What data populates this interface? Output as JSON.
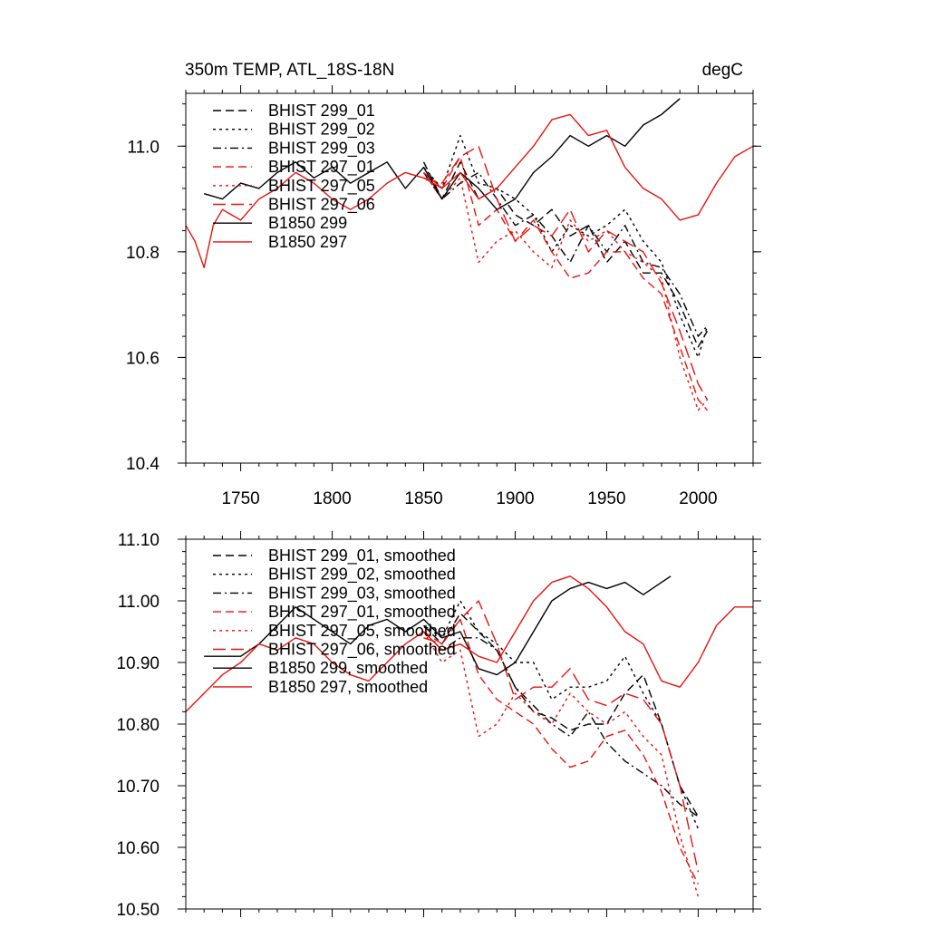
{
  "colors": {
    "black": "#000000",
    "red": "#e8120f"
  },
  "chart_data": [
    {
      "type": "line",
      "title_left": "350m TEMP, ATL_18S-18N",
      "title_right": "degC",
      "xlim": [
        1720,
        2030
      ],
      "ylim": [
        10.4,
        11.1
      ],
      "xticks": [
        1750,
        1800,
        1850,
        1900,
        1950,
        2000
      ],
      "xtick_labels": [
        "1750",
        "1800",
        "1850",
        "1900",
        "1950",
        "2000"
      ],
      "yticks": [
        10.4,
        10.6,
        10.8,
        11.0
      ],
      "ytick_labels": [
        "10.4",
        "10.6",
        "10.8",
        "11.0"
      ],
      "series": [
        {
          "name": "BHIST 299_01",
          "color": "black",
          "dash": "dash",
          "x": [
            1850,
            1860,
            1870,
            1880,
            1890,
            1900,
            1910,
            1920,
            1930,
            1940,
            1950,
            1960,
            1970,
            1980,
            1990,
            2000,
            2005
          ],
          "y": [
            10.97,
            10.9,
            10.97,
            10.9,
            10.92,
            10.87,
            10.85,
            10.88,
            10.83,
            10.85,
            10.78,
            10.82,
            10.76,
            10.76,
            10.7,
            10.62,
            10.65
          ]
        },
        {
          "name": "BHIST 299_02",
          "color": "black",
          "dash": "dot",
          "x": [
            1850,
            1860,
            1870,
            1880,
            1890,
            1900,
            1910,
            1920,
            1930,
            1940,
            1950,
            1960,
            1970,
            1980,
            1990,
            2000,
            2005
          ],
          "y": [
            10.96,
            10.92,
            11.02,
            10.93,
            10.92,
            10.9,
            10.87,
            10.8,
            10.85,
            10.83,
            10.85,
            10.88,
            10.82,
            10.78,
            10.68,
            10.6,
            10.66
          ]
        },
        {
          "name": "BHIST 299_03",
          "color": "black",
          "dash": "dashdot",
          "x": [
            1850,
            1860,
            1870,
            1880,
            1890,
            1900,
            1910,
            1920,
            1930,
            1940,
            1950,
            1960,
            1970,
            1980,
            1990,
            2000,
            2005
          ],
          "y": [
            10.95,
            10.9,
            10.93,
            10.95,
            10.9,
            10.85,
            10.87,
            10.83,
            10.78,
            10.85,
            10.8,
            10.85,
            10.78,
            10.77,
            10.72,
            10.64,
            10.66
          ]
        },
        {
          "name": "BHIST 297_01",
          "color": "red",
          "dash": "dash",
          "x": [
            1850,
            1860,
            1870,
            1880,
            1890,
            1900,
            1910,
            1920,
            1930,
            1940,
            1950,
            1960,
            1970,
            1980,
            1990,
            2000,
            2005
          ],
          "y": [
            10.95,
            10.92,
            10.98,
            10.85,
            10.88,
            10.82,
            10.86,
            10.8,
            10.75,
            10.76,
            10.8,
            10.8,
            10.75,
            10.72,
            10.62,
            10.52,
            10.5
          ]
        },
        {
          "name": "BHIST 297_05",
          "color": "red",
          "dash": "dot",
          "x": [
            1850,
            1860,
            1870,
            1880,
            1890,
            1900,
            1910,
            1920,
            1930,
            1940,
            1950,
            1960,
            1970,
            1980,
            1990,
            2000,
            2005
          ],
          "y": [
            10.95,
            10.9,
            10.94,
            10.78,
            10.82,
            10.84,
            10.8,
            10.77,
            10.86,
            10.82,
            10.84,
            10.8,
            10.78,
            10.75,
            10.6,
            10.5,
            10.52
          ]
        },
        {
          "name": "BHIST 297_06",
          "color": "red",
          "dash": "longdash",
          "x": [
            1850,
            1860,
            1870,
            1880,
            1890,
            1900,
            1910,
            1920,
            1930,
            1940,
            1950,
            1960,
            1970,
            1980,
            1990,
            2000,
            2005
          ],
          "y": [
            10.94,
            10.93,
            10.98,
            11.0,
            10.9,
            10.82,
            10.85,
            10.83,
            10.88,
            10.8,
            10.84,
            10.82,
            10.8,
            10.74,
            10.65,
            10.55,
            10.52
          ]
        },
        {
          "name": "B1850 299",
          "color": "black",
          "dash": "solid",
          "x": [
            1730,
            1740,
            1750,
            1760,
            1770,
            1780,
            1790,
            1800,
            1810,
            1820,
            1830,
            1840,
            1850,
            1860,
            1870,
            1880,
            1890,
            1900,
            1910,
            1920,
            1930,
            1940,
            1950,
            1960,
            1970,
            1980,
            1990
          ],
          "y": [
            10.91,
            10.9,
            10.93,
            10.92,
            10.95,
            10.97,
            10.94,
            10.96,
            10.93,
            10.95,
            10.97,
            10.92,
            10.96,
            10.9,
            10.95,
            10.92,
            10.88,
            10.9,
            10.95,
            10.98,
            11.02,
            11.0,
            11.02,
            11.0,
            11.04,
            11.06,
            11.09
          ]
        },
        {
          "name": "B1850 297",
          "color": "red",
          "dash": "solid",
          "x": [
            1720,
            1725,
            1730,
            1735,
            1740,
            1750,
            1760,
            1770,
            1780,
            1790,
            1800,
            1810,
            1820,
            1830,
            1840,
            1850,
            1860,
            1870,
            1880,
            1890,
            1900,
            1910,
            1920,
            1930,
            1940,
            1950,
            1960,
            1970,
            1980,
            1990,
            2000,
            2010,
            2020,
            2030
          ],
          "y": [
            10.85,
            10.82,
            10.77,
            10.85,
            10.88,
            10.86,
            10.9,
            10.92,
            10.95,
            10.93,
            10.9,
            10.88,
            10.9,
            10.93,
            10.95,
            10.94,
            10.92,
            10.95,
            10.9,
            10.92,
            10.96,
            11.0,
            11.05,
            11.06,
            11.02,
            11.03,
            10.96,
            10.92,
            10.9,
            10.86,
            10.87,
            10.93,
            10.98,
            11.0
          ]
        }
      ]
    },
    {
      "type": "line",
      "xlim": [
        1720,
        2030
      ],
      "ylim": [
        10.5,
        11.1
      ],
      "xticks": [
        1750,
        1800,
        1850,
        1900,
        1950,
        2000
      ],
      "yticks": [
        10.5,
        10.6,
        10.7,
        10.8,
        10.9,
        11.0,
        11.1
      ],
      "ytick_labels": [
        "10.50",
        "10.60",
        "10.70",
        "10.80",
        "10.90",
        "11.00",
        "11.10"
      ],
      "series": [
        {
          "name": "BHIST 299_01, smoothed",
          "color": "black",
          "dash": "dash",
          "x": [
            1850,
            1860,
            1870,
            1880,
            1890,
            1900,
            1910,
            1920,
            1930,
            1940,
            1950,
            1960,
            1970,
            1980,
            1990,
            2000
          ],
          "y": [
            10.96,
            10.93,
            10.98,
            10.95,
            10.92,
            10.86,
            10.82,
            10.81,
            10.79,
            10.8,
            10.8,
            10.85,
            10.88,
            10.8,
            10.7,
            10.65
          ]
        },
        {
          "name": "BHIST 299_02, smoothed",
          "color": "black",
          "dash": "dot",
          "x": [
            1850,
            1860,
            1870,
            1880,
            1890,
            1900,
            1910,
            1920,
            1930,
            1940,
            1950,
            1960,
            1970,
            1980,
            1990,
            2000
          ],
          "y": [
            10.96,
            10.94,
            11.0,
            10.95,
            10.93,
            10.9,
            10.9,
            10.84,
            10.86,
            10.86,
            10.87,
            10.91,
            10.85,
            10.8,
            10.7,
            10.63
          ]
        },
        {
          "name": "BHIST 299_03, smoothed",
          "color": "black",
          "dash": "dashdot",
          "x": [
            1850,
            1860,
            1870,
            1880,
            1890,
            1900,
            1910,
            1920,
            1930,
            1940,
            1950,
            1960,
            1970,
            1980,
            1990,
            2000
          ],
          "y": [
            10.95,
            10.92,
            10.94,
            10.94,
            10.92,
            10.86,
            10.83,
            10.8,
            10.78,
            10.82,
            10.77,
            10.74,
            10.72,
            10.7,
            10.67,
            10.65
          ]
        },
        {
          "name": "BHIST 297_01, smoothed",
          "color": "red",
          "dash": "dash",
          "x": [
            1850,
            1860,
            1870,
            1880,
            1890,
            1900,
            1910,
            1920,
            1930,
            1940,
            1950,
            1960,
            1970,
            1980,
            1990,
            2000
          ],
          "y": [
            10.95,
            10.93,
            10.97,
            10.88,
            10.84,
            10.82,
            10.8,
            10.76,
            10.73,
            10.74,
            10.78,
            10.79,
            10.75,
            10.69,
            10.6,
            10.54
          ]
        },
        {
          "name": "BHIST 297_05, smoothed",
          "color": "red",
          "dash": "dot",
          "x": [
            1850,
            1860,
            1870,
            1880,
            1890,
            1900,
            1910,
            1920,
            1930,
            1940,
            1950,
            1960,
            1970,
            1980,
            1990,
            2000
          ],
          "y": [
            10.95,
            10.9,
            10.92,
            10.78,
            10.8,
            10.85,
            10.82,
            10.8,
            10.85,
            10.82,
            10.8,
            10.82,
            10.78,
            10.75,
            10.62,
            10.52
          ]
        },
        {
          "name": "BHIST 297_06, smoothed",
          "color": "red",
          "dash": "longdash",
          "x": [
            1850,
            1860,
            1870,
            1880,
            1890,
            1900,
            1910,
            1920,
            1930,
            1940,
            1950,
            1960,
            1970,
            1980,
            1990,
            2000
          ],
          "y": [
            10.94,
            10.93,
            10.97,
            11.0,
            10.93,
            10.84,
            10.86,
            10.86,
            10.89,
            10.84,
            10.83,
            10.85,
            10.84,
            10.8,
            10.7,
            10.56
          ]
        },
        {
          "name": "B1850 299, smoothed",
          "color": "black",
          "dash": "solid",
          "x": [
            1730,
            1740,
            1750,
            1760,
            1770,
            1780,
            1790,
            1800,
            1810,
            1820,
            1830,
            1840,
            1850,
            1860,
            1870,
            1880,
            1890,
            1900,
            1910,
            1920,
            1930,
            1940,
            1950,
            1960,
            1970,
            1980,
            1985
          ],
          "y": [
            10.91,
            10.91,
            10.91,
            10.93,
            10.96,
            10.99,
            10.97,
            10.95,
            10.93,
            10.96,
            10.97,
            10.95,
            10.97,
            10.94,
            10.95,
            10.89,
            10.88,
            10.9,
            10.95,
            11.0,
            11.02,
            11.03,
            11.02,
            11.03,
            11.01,
            11.03,
            11.04
          ]
        },
        {
          "name": "B1850 297, smoothed",
          "color": "red",
          "dash": "solid",
          "x": [
            1720,
            1730,
            1740,
            1750,
            1760,
            1770,
            1780,
            1790,
            1800,
            1810,
            1820,
            1830,
            1840,
            1850,
            1860,
            1870,
            1880,
            1890,
            1900,
            1910,
            1920,
            1930,
            1940,
            1950,
            1960,
            1970,
            1980,
            1990,
            2000,
            2010,
            2020,
            2030
          ],
          "y": [
            10.82,
            10.85,
            10.88,
            10.9,
            10.93,
            10.92,
            10.94,
            10.93,
            10.9,
            10.88,
            10.87,
            10.9,
            10.93,
            10.95,
            10.92,
            10.93,
            10.91,
            10.9,
            10.95,
            11.0,
            11.03,
            11.04,
            11.02,
            10.99,
            10.95,
            10.93,
            10.87,
            10.86,
            10.9,
            10.96,
            10.99,
            10.99
          ]
        }
      ]
    }
  ]
}
